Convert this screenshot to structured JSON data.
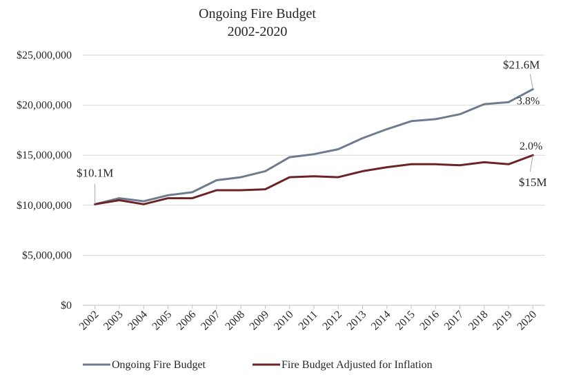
{
  "chart_data": {
    "type": "line",
    "title": "Ongoing Fire Budget",
    "subtitle": "2002-2020",
    "x": [
      "2002",
      "2003",
      "2004",
      "2005",
      "2006",
      "2007",
      "2008",
      "2009",
      "2010",
      "2011",
      "2012",
      "2013",
      "2014",
      "2015",
      "2016",
      "2017",
      "2018",
      "2019",
      "2020"
    ],
    "ylim": [
      0,
      25000000
    ],
    "yticks": [
      0,
      5000000,
      10000000,
      15000000,
      20000000,
      25000000
    ],
    "ytick_labels": [
      "$0",
      "$5,000,000",
      "$10,000,000",
      "$15,000,000",
      "$20,000,000",
      "$25,000,000"
    ],
    "grid": true,
    "legend_position": "bottom",
    "series": [
      {
        "name": "Ongoing Fire Budget",
        "color": "#6e7b8e",
        "values": [
          10100000,
          10700000,
          10400000,
          11000000,
          11300000,
          12500000,
          12800000,
          13400000,
          14800000,
          15100000,
          15600000,
          16700000,
          17600000,
          18400000,
          18600000,
          19100000,
          20100000,
          20300000,
          21600000
        ]
      },
      {
        "name": "Fire Budget Adjusted for Inflation",
        "color": "#6b2326",
        "values": [
          10100000,
          10500000,
          10100000,
          10700000,
          10700000,
          11500000,
          11500000,
          11600000,
          12800000,
          12900000,
          12800000,
          13400000,
          13800000,
          14100000,
          14100000,
          14000000,
          14300000,
          14100000,
          15000000
        ]
      }
    ],
    "annotations": [
      {
        "text": "$10.1M",
        "series": 0,
        "index": 0
      },
      {
        "text": "$21.6M",
        "series": 0,
        "index": 18
      },
      {
        "text": "3.8%",
        "series": 0,
        "index": 18
      },
      {
        "text": "2.0%",
        "series": 1,
        "index": 18
      },
      {
        "text": "$15M",
        "series": 1,
        "index": 18
      }
    ]
  }
}
